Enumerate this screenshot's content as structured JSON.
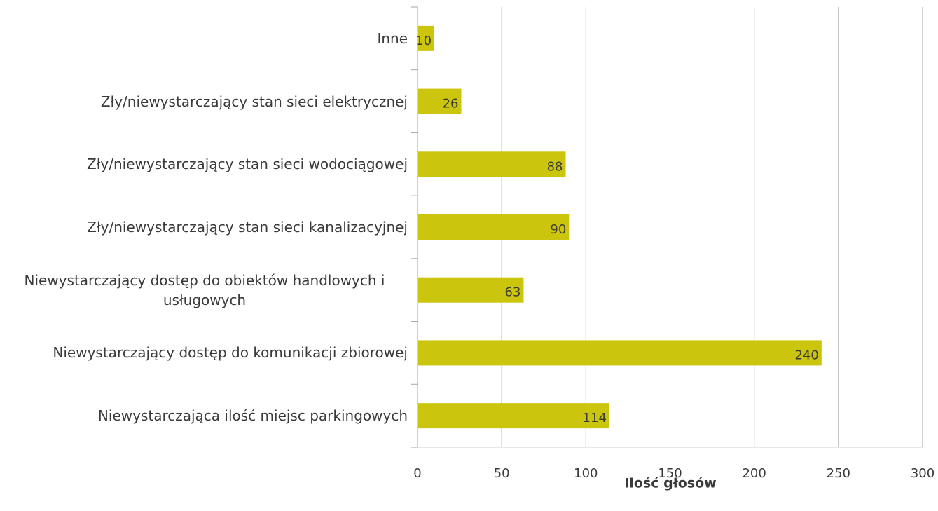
{
  "chart_data": {
    "type": "barh",
    "categories": [
      "Inne",
      "Zły/niewystarczający stan sieci elektrycznej",
      "Zły/niewystarczający stan sieci wodociągowej",
      "Zły/niewystarczający stan sieci kanalizacyjnej",
      "Niewystarczający dostęp do obiektów handlowych i usługowych",
      "Niewystarczający dostęp do komunikacji zbiorowej",
      "Niewystarczająca ilość miejsc parkingowych"
    ],
    "values": [
      10,
      26,
      88,
      90,
      63,
      240,
      114
    ],
    "color": "#cbc50e",
    "xlabel": "Ilość głosów",
    "xlim": [
      0,
      300
    ],
    "xticks": [
      0,
      50,
      100,
      150,
      200,
      250,
      300
    ],
    "grid": true
  }
}
